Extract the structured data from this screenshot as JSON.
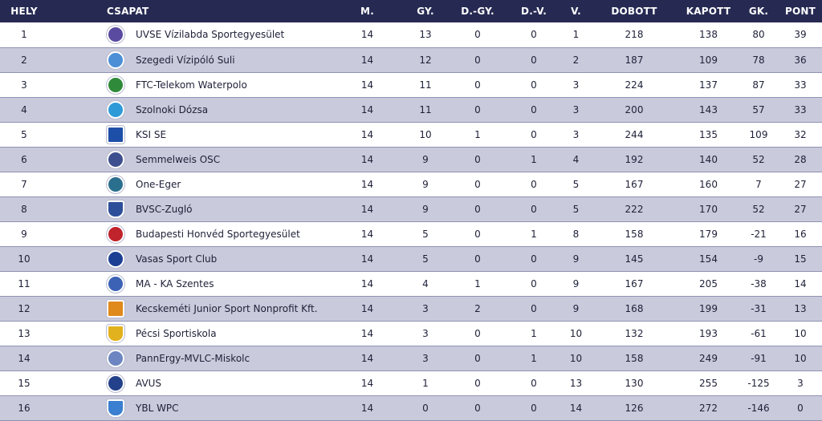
{
  "headers": {
    "rank": "HELY",
    "team": "CSAPAT",
    "played": "M.",
    "wins": "GY.",
    "draw_wins": "D.-GY.",
    "draw_losses": "D.-V.",
    "losses": "V.",
    "goals_for": "DOBOTT",
    "goals_against": "KAPOTT",
    "goal_diff": "GK.",
    "points": "PONT"
  },
  "rows": [
    {
      "rank": "1",
      "team": "UVSE Vízilabda Sportegyesület",
      "logo": "uvse-logo",
      "logo_color": "#5a4aa0",
      "logo_text": "U",
      "played": "14",
      "wins": "13",
      "draw_wins": "0",
      "draw_losses": "0",
      "losses": "1",
      "goals_for": "218",
      "goals_against": "138",
      "goal_diff": "80",
      "points": "39"
    },
    {
      "rank": "2",
      "team": "Szegedi Vízipóló Suli",
      "logo": "szegedi-logo",
      "logo_color": "#4c8fd6",
      "logo_text": "SZ",
      "played": "14",
      "wins": "12",
      "draw_wins": "0",
      "draw_losses": "0",
      "losses": "2",
      "goals_for": "187",
      "goals_against": "109",
      "goal_diff": "78",
      "points": "36"
    },
    {
      "rank": "3",
      "team": "FTC-Telekom Waterpolo",
      "logo": "ftc-logo",
      "logo_color": "#2f8a3a",
      "logo_text": "FTC",
      "played": "14",
      "wins": "11",
      "draw_wins": "0",
      "draw_losses": "0",
      "losses": "3",
      "goals_for": "224",
      "goals_against": "137",
      "goal_diff": "87",
      "points": "33"
    },
    {
      "rank": "4",
      "team": "Szolnoki Dózsa",
      "logo": "szolnok-logo",
      "logo_color": "#2f9ad8",
      "logo_text": "SZ",
      "played": "14",
      "wins": "11",
      "draw_wins": "0",
      "draw_losses": "0",
      "losses": "3",
      "goals_for": "200",
      "goals_against": "143",
      "goal_diff": "57",
      "points": "33"
    },
    {
      "rank": "5",
      "team": "KSI SE",
      "logo": "ksi-logo",
      "logo_color": "#1d4fa8",
      "logo_text": "KSI",
      "played": "14",
      "wins": "10",
      "draw_wins": "1",
      "draw_losses": "0",
      "losses": "3",
      "goals_for": "244",
      "goals_against": "135",
      "goal_diff": "109",
      "points": "32"
    },
    {
      "rank": "6",
      "team": "Semmelweis OSC",
      "logo": "semmelweis-logo",
      "logo_color": "#3e4f8f",
      "logo_text": "S",
      "played": "14",
      "wins": "9",
      "draw_wins": "0",
      "draw_losses": "1",
      "losses": "4",
      "goals_for": "192",
      "goals_against": "140",
      "goal_diff": "52",
      "points": "28"
    },
    {
      "rank": "7",
      "team": "One-Eger",
      "logo": "one-eger-logo",
      "logo_color": "#2b6f8e",
      "logo_text": "E",
      "played": "14",
      "wins": "9",
      "draw_wins": "0",
      "draw_losses": "0",
      "losses": "5",
      "goals_for": "167",
      "goals_against": "160",
      "goal_diff": "7",
      "points": "27"
    },
    {
      "rank": "8",
      "team": "BVSC-Zugló",
      "logo": "bvsc-logo",
      "logo_color": "#2d4f9a",
      "logo_text": "B",
      "played": "14",
      "wins": "9",
      "draw_wins": "0",
      "draw_losses": "0",
      "losses": "5",
      "goals_for": "222",
      "goals_against": "170",
      "goal_diff": "52",
      "points": "27"
    },
    {
      "rank": "9",
      "team": "Budapesti Honvéd Sportegyesület",
      "logo": "honved-logo",
      "logo_color": "#c0232b",
      "logo_text": "H",
      "played": "14",
      "wins": "5",
      "draw_wins": "0",
      "draw_losses": "1",
      "losses": "8",
      "goals_for": "158",
      "goals_against": "179",
      "goal_diff": "-21",
      "points": "16"
    },
    {
      "rank": "10",
      "team": "Vasas Sport Club",
      "logo": "vasas-logo",
      "logo_color": "#1c3f94",
      "logo_text": "V",
      "played": "14",
      "wins": "5",
      "draw_wins": "0",
      "draw_losses": "0",
      "losses": "9",
      "goals_for": "145",
      "goals_against": "154",
      "goal_diff": "-9",
      "points": "15"
    },
    {
      "rank": "11",
      "team": "MA - KA Szentes",
      "logo": "szentes-logo",
      "logo_color": "#3b62b5",
      "logo_text": "SZ",
      "played": "14",
      "wins": "4",
      "draw_wins": "1",
      "draw_losses": "0",
      "losses": "9",
      "goals_for": "167",
      "goals_against": "205",
      "goal_diff": "-38",
      "points": "14"
    },
    {
      "rank": "12",
      "team": "Kecskeméti Junior Sport Nonprofit Kft.",
      "logo": "kecskemet-logo",
      "logo_color": "#e08a1c",
      "logo_text": "K",
      "played": "14",
      "wins": "3",
      "draw_wins": "2",
      "draw_losses": "0",
      "losses": "9",
      "goals_for": "168",
      "goals_against": "199",
      "goal_diff": "-31",
      "points": "13"
    },
    {
      "rank": "13",
      "team": "Pécsi Sportiskola",
      "logo": "pecs-logo",
      "logo_color": "#e2b21e",
      "logo_text": "P",
      "played": "14",
      "wins": "3",
      "draw_wins": "0",
      "draw_losses": "1",
      "losses": "10",
      "goals_for": "132",
      "goals_against": "193",
      "goal_diff": "-61",
      "points": "10"
    },
    {
      "rank": "14",
      "team": "PannErgy-MVLC-Miskolc",
      "logo": "miskolc-logo",
      "logo_color": "#6d86c2",
      "logo_text": "M",
      "played": "14",
      "wins": "3",
      "draw_wins": "0",
      "draw_losses": "1",
      "losses": "10",
      "goals_for": "158",
      "goals_against": "249",
      "goal_diff": "-91",
      "points": "10"
    },
    {
      "rank": "15",
      "team": "AVUS",
      "logo": "avus-logo",
      "logo_color": "#23408a",
      "logo_text": "A",
      "played": "14",
      "wins": "1",
      "draw_wins": "0",
      "draw_losses": "0",
      "losses": "13",
      "goals_for": "130",
      "goals_against": "255",
      "goal_diff": "-125",
      "points": "3"
    },
    {
      "rank": "16",
      "team": "YBL WPC",
      "logo": "ybl-logo",
      "logo_color": "#3a7fd0",
      "logo_text": "Y",
      "played": "14",
      "wins": "0",
      "draw_wins": "0",
      "draw_losses": "0",
      "losses": "14",
      "goals_for": "126",
      "goals_against": "272",
      "goal_diff": "-146",
      "points": "0"
    }
  ]
}
